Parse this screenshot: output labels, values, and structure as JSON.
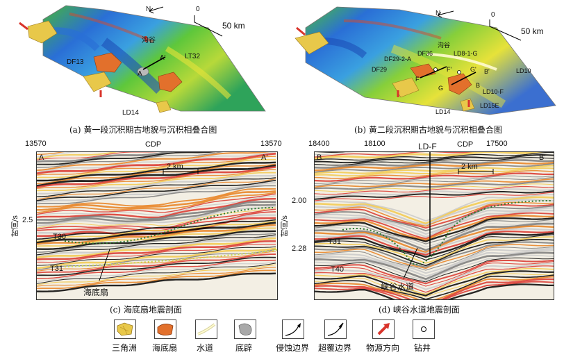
{
  "map_a": {
    "caption": "(a) 黄一段沉积期古地貌与沉积相叠合图",
    "north": "N",
    "scale_zero": "0",
    "scale_label": "50 km",
    "labels": {
      "gully": "沟谷",
      "df13": "DF13",
      "lt32": "LT32",
      "a": "A",
      "a_prime": "A'",
      "ld14": "LD14"
    }
  },
  "map_b": {
    "caption": "(b) 黄二段沉积期古地貌与沉积相叠合图",
    "north": "N",
    "scale_zero": "0",
    "scale_label": "50 km",
    "labels": {
      "gully": "沟谷",
      "df36": "DF36",
      "ld8": "LD8-1-G",
      "df29_2": "DF29-2-A",
      "df29": "DF29",
      "f": "F",
      "f_prime": "F'",
      "g": "G",
      "g_prime": "G'",
      "b": "B",
      "b_prime": "B'",
      "ld10": "LD10",
      "ld10f": "LD10-F",
      "ld15e": "LD15E",
      "ld14": "LD14"
    }
  },
  "section_c": {
    "caption": "(c) 海底扇地震剖面",
    "cdp_left": "13570",
    "cdp_title": "CDP",
    "cdp_right": "13570",
    "ylabel": "时间/s",
    "ytick": "2.5",
    "corner_left": "A",
    "corner_right": "A'",
    "scale": "2 km",
    "t30": "T30",
    "t31": "T31",
    "feature": "海底扇"
  },
  "section_d": {
    "caption": "(d) 峡谷水道地震剖面",
    "cdp_1": "18400",
    "cdp_2": "18100",
    "well": "LD-F",
    "cdp_title": "CDP",
    "cdp_3": "17500",
    "ylabel": "时间/s",
    "ytick_1": "2.00",
    "ytick_2": "2.28",
    "corner_left": "B",
    "corner_right": "B'",
    "scale": "2 km",
    "t31": "T31",
    "t40": "T40",
    "feature": "峡谷水道"
  },
  "legend": [
    {
      "label": "三角洲",
      "icon": "delta-icon"
    },
    {
      "label": "海底扇",
      "icon": "submarine-fan-icon"
    },
    {
      "label": "水道",
      "icon": "channel-icon"
    },
    {
      "label": "底辟",
      "icon": "diapir-icon"
    },
    {
      "label": "侵蚀边界",
      "icon": "erosion-boundary-icon"
    },
    {
      "label": "超覆边界",
      "icon": "onlap-boundary-icon"
    },
    {
      "label": "物源方向",
      "icon": "provenance-arrow-icon"
    },
    {
      "label": "钻井",
      "icon": "well-icon"
    }
  ],
  "colors": {
    "delta": "#e8c84a",
    "fan": "#e2702c",
    "basin_blue": "#2a6fd6",
    "high_green": "#4bbf3a",
    "arrow_red": "#d9342b"
  }
}
